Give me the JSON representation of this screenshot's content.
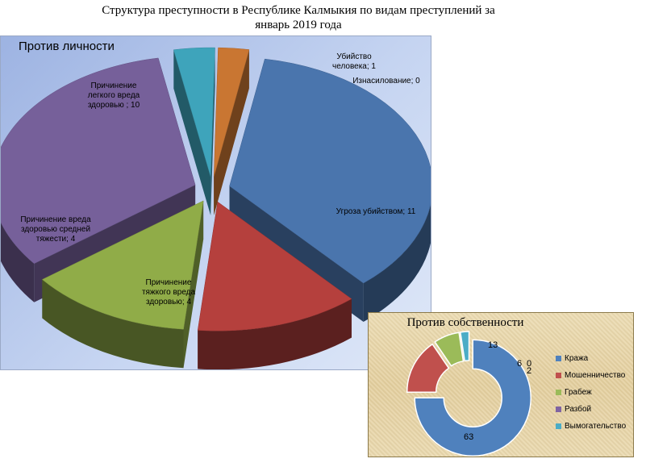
{
  "title": "Структура преступности  в Республике Калмыкия по видам преступлений за январь 2019 года",
  "chart_data": [
    {
      "type": "pie",
      "title": "Против личности",
      "slices": [
        {
          "label": "Угроза убийством",
          "value": 11,
          "color": "#4a75ad",
          "label_text": "Угроза убийством; 11"
        },
        {
          "label": "Причинение тяжкого вреда здоровью",
          "value": 4,
          "color": "#b5403d",
          "label_text": "Причинение тяжкого вреда здоровью; 4"
        },
        {
          "label": "Причинение вреда здоровью средней тяжести",
          "value": 4,
          "color": "#90ac48",
          "label_text": "Причинение вреда здоровью средней тяжести; 4"
        },
        {
          "label": "Причинение легкого вреда здоровью",
          "value": 10,
          "color": "#76609a",
          "label_text": "Причинение легкого вреда здоровью ; 10"
        },
        {
          "label": "Убийство человека",
          "value": 1,
          "color": "#3ea4bb",
          "label_text": "Убийство человека; 1"
        },
        {
          "label": "Изнасилование",
          "value": 0,
          "color": "#c97632",
          "label_text": "Изнасилование;  0"
        }
      ]
    },
    {
      "type": "pie",
      "subtype": "doughnut",
      "title": "Против собственности",
      "legend_position": "right",
      "slices": [
        {
          "label": "Кража",
          "value": 63,
          "color": "#4f81bd",
          "label_text": "63"
        },
        {
          "label": "Мошенничество",
          "value": 13,
          "color": "#c0504d",
          "label_text": "13"
        },
        {
          "label": "Грабеж",
          "value": 6,
          "color": "#9bbb59",
          "label_text": "6"
        },
        {
          "label": "Разбой",
          "value": 0,
          "color": "#8064a2",
          "label_text": "0"
        },
        {
          "label": "Вымогательство",
          "value": 2,
          "color": "#4bacc6",
          "label_text": "2"
        }
      ]
    }
  ]
}
